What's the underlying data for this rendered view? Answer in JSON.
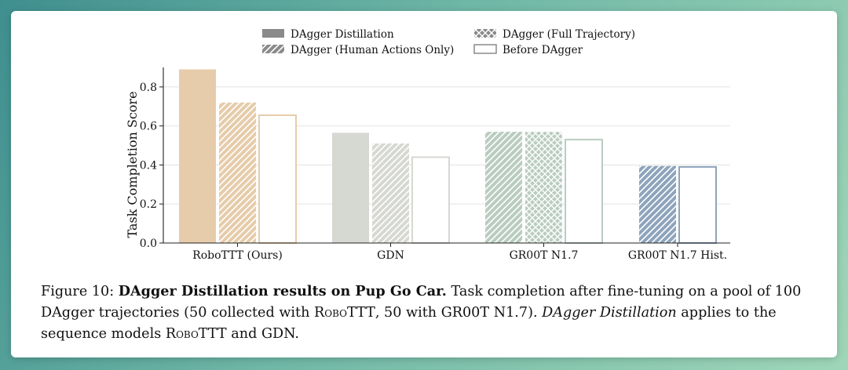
{
  "figure": {
    "chart_data": {
      "type": "bar",
      "ylabel": "Task Completion Score",
      "ylim": [
        0,
        0.9
      ],
      "yticks": [
        "0.0",
        "0.2",
        "0.4",
        "0.6",
        "0.8"
      ],
      "ytick_values": [
        0,
        0.2,
        0.4,
        0.6,
        0.8
      ],
      "grid": "horizontal",
      "legend_position": "top-center",
      "legend": [
        {
          "name": "DAgger Distillation",
          "style": "solid"
        },
        {
          "name": "DAgger (Full Trajectory)",
          "style": "crosshatch"
        },
        {
          "name": "DAgger (Human Actions Only)",
          "style": "diagonal"
        },
        {
          "name": "Before DAgger",
          "style": "outline"
        }
      ],
      "groups": [
        {
          "category": "RoboTTT (Ours)",
          "color": "#e6ccaa",
          "bars": [
            {
              "series": "DAgger Distillation",
              "value": 0.89
            },
            {
              "series": "DAgger (Human Actions Only)",
              "value": 0.72
            },
            {
              "series": "Before DAgger",
              "value": 0.655
            }
          ]
        },
        {
          "category": "GDN",
          "color": "#d6d8d2",
          "bars": [
            {
              "series": "DAgger Distillation",
              "value": 0.565
            },
            {
              "series": "DAgger (Human Actions Only)",
              "value": 0.51
            },
            {
              "series": "Before DAgger",
              "value": 0.44
            }
          ]
        },
        {
          "category": "GR00T N1.7",
          "color": "#b9ccc0",
          "bars": [
            {
              "series": "DAgger (Human Actions Only)",
              "value": 0.57
            },
            {
              "series": "DAgger (Full Trajectory)",
              "value": 0.57
            },
            {
              "series": "Before DAgger",
              "value": 0.53
            }
          ]
        },
        {
          "category": "GR00T N1.7 Hist.",
          "color": "#8ea4bc",
          "bars": [
            {
              "series": "DAgger (Human Actions Only)",
              "value": 0.395
            },
            {
              "series": "Before DAgger",
              "value": 0.39
            }
          ]
        }
      ]
    }
  },
  "caption": {
    "prefix": "Figure 10: ",
    "bold": "DAgger Distillation results on Pup Go Car.",
    "part1": " Task completion after fine-tuning on a pool of 100 DAgger trajectories (50 collected with ",
    "robottt1": "RoboTTT",
    "part2": ", 50 with GR00T N1.7). ",
    "italic": "DAgger Distillation",
    "part3": " applies to the sequence models ",
    "robottt2": "RoboTTT",
    "part4": " and GDN."
  }
}
